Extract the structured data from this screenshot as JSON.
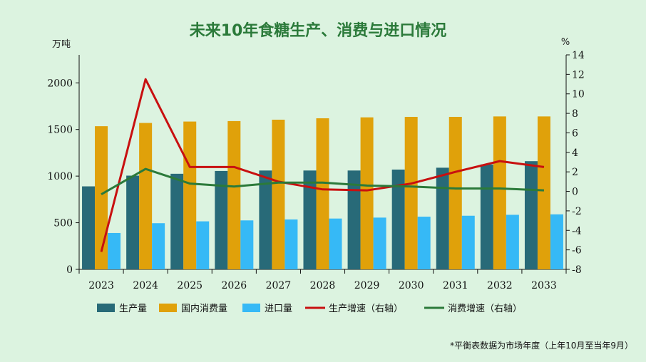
{
  "chart_data": {
    "type": "bar",
    "title": "未来10年食糖生产、消费与进口情况",
    "y_left_unit": "万吨",
    "y_right_unit": "%",
    "categories": [
      "2023",
      "2024",
      "2025",
      "2026",
      "2027",
      "2028",
      "2029",
      "2030",
      "2031",
      "2032",
      "2033"
    ],
    "ylim_left": [
      0,
      2300
    ],
    "yticks_left": [
      "0",
      "500",
      "1000",
      "1500",
      "2000"
    ],
    "ylim_right": [
      -8,
      14
    ],
    "yticks_right": [
      "-8",
      "-6",
      "-4",
      "-2",
      "0",
      "2",
      "4",
      "6",
      "8",
      "10",
      "12",
      "14"
    ],
    "grid": false,
    "legend_position": "bottom",
    "series": [
      {
        "name": "生产量",
        "kind": "bar",
        "axis": "left",
        "color": "#286a78",
        "values": [
          890,
          1005,
          1025,
          1055,
          1060,
          1060,
          1060,
          1070,
          1090,
          1125,
          1160
        ]
      },
      {
        "name": "国内消费量",
        "kind": "bar",
        "axis": "left",
        "color": "#e0a10a",
        "values": [
          1535,
          1570,
          1585,
          1590,
          1605,
          1620,
          1630,
          1635,
          1635,
          1640,
          1640
        ]
      },
      {
        "name": "进口量",
        "kind": "bar",
        "axis": "left",
        "color": "#36b9f6",
        "values": [
          390,
          495,
          515,
          525,
          535,
          545,
          555,
          565,
          575,
          585,
          590
        ]
      },
      {
        "name": "生产增速（右轴）",
        "kind": "line",
        "axis": "right",
        "color": "#c81010",
        "values": [
          -6.2,
          11.5,
          2.5,
          2.5,
          1.0,
          0.2,
          0.1,
          0.8,
          2.0,
          3.1,
          2.5
        ]
      },
      {
        "name": "消费增速（右轴）",
        "kind": "line",
        "axis": "right",
        "color": "#2b7a3a",
        "values": [
          -0.3,
          2.3,
          0.8,
          0.5,
          0.9,
          0.9,
          0.6,
          0.5,
          0.3,
          0.3,
          0.1
        ]
      }
    ],
    "footnote": "*平衡表数据为市场年度（上年10月至当年9月）"
  }
}
